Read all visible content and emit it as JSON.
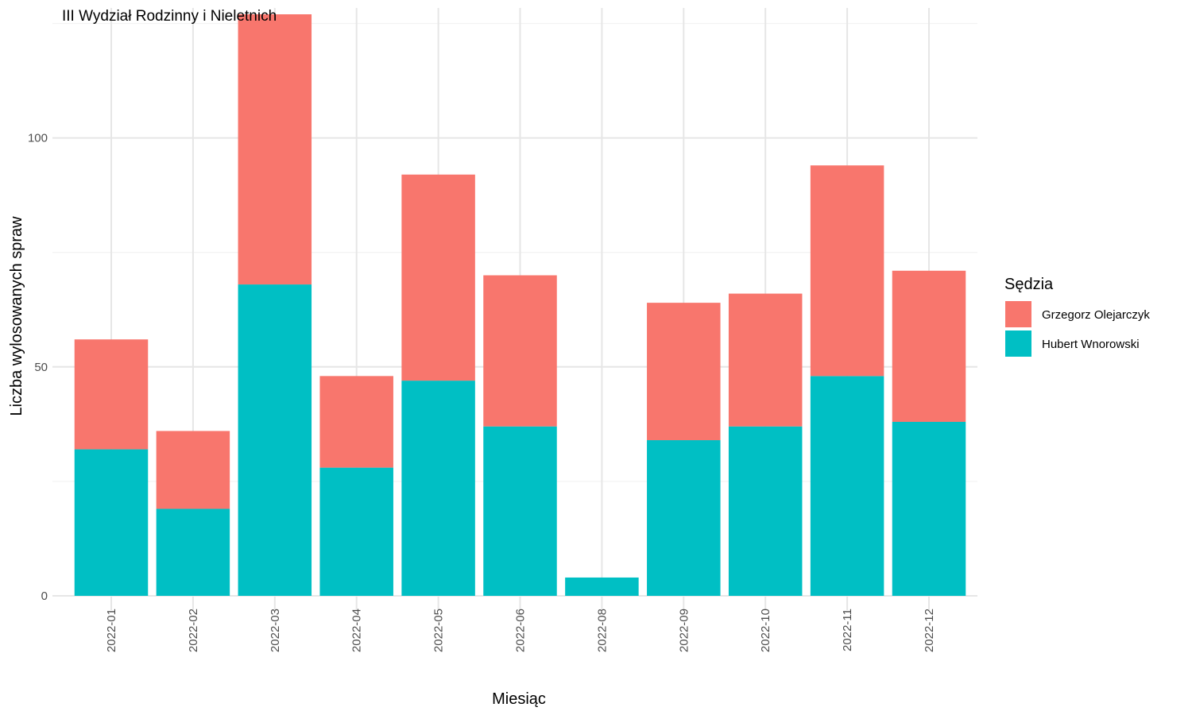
{
  "chart_data": {
    "type": "bar",
    "stacked": true,
    "title": "III Wydział Rodzinny i Nieletnich",
    "xlabel": "Miesiąc",
    "ylabel": "Liczba wylosowanych spraw",
    "categories": [
      "2022-01",
      "2022-02",
      "2022-03",
      "2022-04",
      "2022-05",
      "2022-06",
      "2022-08",
      "2022-09",
      "2022-10",
      "2022-11",
      "2022-12"
    ],
    "series": [
      {
        "name": "Hubert Wnorowski",
        "color": "#00BFC4",
        "values": [
          32,
          19,
          68,
          28,
          47,
          37,
          4,
          34,
          37,
          48,
          38
        ]
      },
      {
        "name": "Grzegorz Olejarczyk",
        "color": "#F8766D",
        "values": [
          24,
          17,
          59,
          20,
          45,
          33,
          0,
          30,
          29,
          46,
          33
        ]
      }
    ],
    "ylim": [
      0,
      127
    ],
    "yticks": [
      0,
      50,
      100
    ],
    "grid": true,
    "legend": {
      "title": "Sędzia",
      "position": "right",
      "entries": [
        "Grzegorz Olejarczyk",
        "Hubert Wnorowski"
      ]
    }
  }
}
